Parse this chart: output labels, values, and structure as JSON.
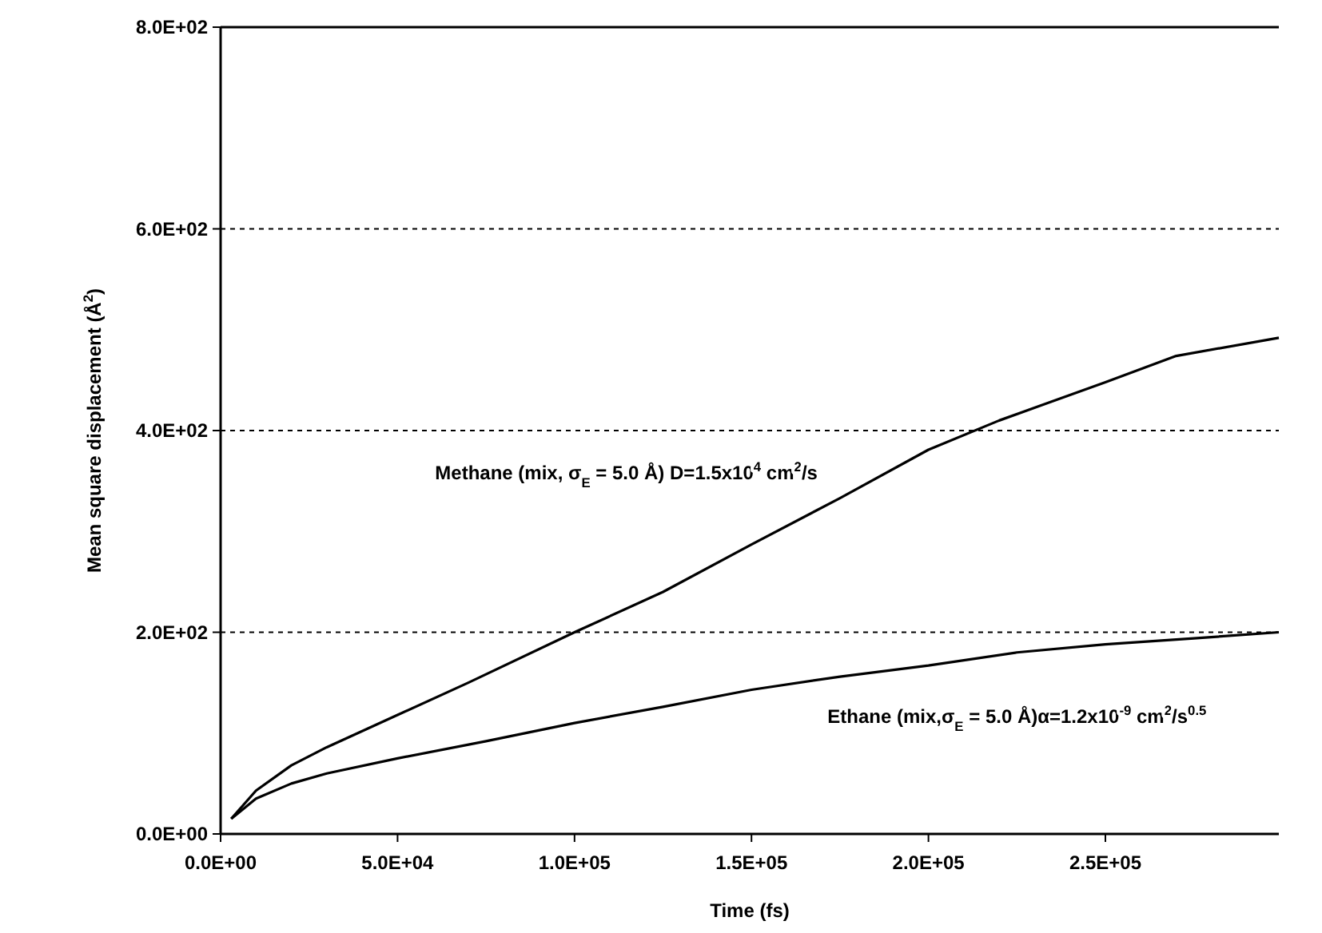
{
  "chart_data": {
    "type": "line",
    "xlabel": "Time (fs)",
    "ylabel": "Mean square displacement (Å$^{2}$)",
    "xlim": [
      0,
      299000
    ],
    "ylim": [
      0,
      800
    ],
    "xticks": [
      {
        "value": 0,
        "label": "0.0E+00"
      },
      {
        "value": 50000,
        "label": "5.0E+04"
      },
      {
        "value": 100000,
        "label": "1.0E+05"
      },
      {
        "value": 150000,
        "label": "1.5E+05"
      },
      {
        "value": 200000,
        "label": "2.0E+05"
      },
      {
        "value": 250000,
        "label": "2.5E+05"
      }
    ],
    "yticks": [
      {
        "value": 0,
        "label": "0.0E+00"
      },
      {
        "value": 200,
        "label": "2.0E+02"
      },
      {
        "value": 400,
        "label": "4.0E+02"
      },
      {
        "value": 600,
        "label": "6.0E+02"
      },
      {
        "value": 800,
        "label": "8.0E+02"
      }
    ],
    "grid": "y",
    "line_style": "solid",
    "series": [
      {
        "name": "Methane (mix, σ$_{E}$ = 5.0 Å) D=1.5x10$^{4}$ cm$^{2}$/s",
        "color": "#000000",
        "x": [
          3000,
          10000,
          20000,
          30000,
          50000,
          70000,
          100000,
          125000,
          150000,
          175000,
          200000,
          220000,
          250000,
          270000,
          299000
        ],
        "values": [
          15,
          43,
          68,
          86,
          118,
          150,
          200,
          240,
          287,
          333,
          381,
          410,
          448,
          474,
          492
        ]
      },
      {
        "name": "Ethane (mix,σ$_{E}$ = 5.0 Å)α=1.2x10$^{-9}$ cm$^{2}$/s$^{0.5}$",
        "color": "#000000",
        "x": [
          3000,
          10000,
          20000,
          30000,
          50000,
          75000,
          100000,
          125000,
          150000,
          175000,
          200000,
          225000,
          250000,
          275000,
          299000
        ],
        "values": [
          15,
          35,
          50,
          60,
          75,
          92,
          110,
          126,
          143,
          156,
          167,
          180,
          188,
          194,
          200
        ]
      }
    ]
  }
}
